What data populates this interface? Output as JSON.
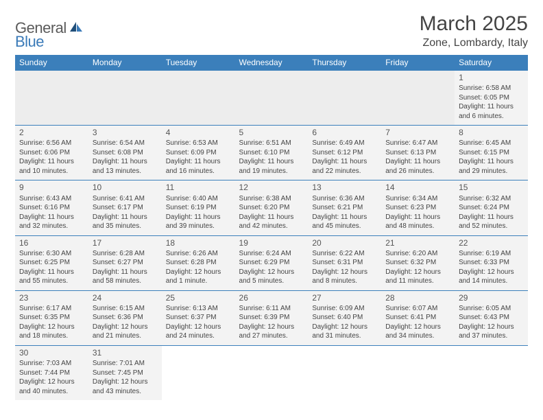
{
  "logo": {
    "text1": "General",
    "text2": "Blue",
    "color1": "#5a5a5a",
    "color2": "#3a7ab8"
  },
  "header": {
    "month_title": "March 2025",
    "location": "Zone, Lombardy, Italy"
  },
  "theme": {
    "header_bg": "#3b7fbb",
    "header_text": "#ffffff",
    "cell_bg": "#f3f3f3",
    "empty_bg": "#ededed",
    "border_color": "#3b7fbb",
    "text_color": "#333333"
  },
  "day_labels": [
    "Sunday",
    "Monday",
    "Tuesday",
    "Wednesday",
    "Thursday",
    "Friday",
    "Saturday"
  ],
  "first_day_index": 6,
  "days_in_month": 31,
  "days": {
    "1": {
      "sunrise": "6:58 AM",
      "sunset": "6:05 PM",
      "daylight": "11 hours and 6 minutes."
    },
    "2": {
      "sunrise": "6:56 AM",
      "sunset": "6:06 PM",
      "daylight": "11 hours and 10 minutes."
    },
    "3": {
      "sunrise": "6:54 AM",
      "sunset": "6:08 PM",
      "daylight": "11 hours and 13 minutes."
    },
    "4": {
      "sunrise": "6:53 AM",
      "sunset": "6:09 PM",
      "daylight": "11 hours and 16 minutes."
    },
    "5": {
      "sunrise": "6:51 AM",
      "sunset": "6:10 PM",
      "daylight": "11 hours and 19 minutes."
    },
    "6": {
      "sunrise": "6:49 AM",
      "sunset": "6:12 PM",
      "daylight": "11 hours and 22 minutes."
    },
    "7": {
      "sunrise": "6:47 AM",
      "sunset": "6:13 PM",
      "daylight": "11 hours and 26 minutes."
    },
    "8": {
      "sunrise": "6:45 AM",
      "sunset": "6:15 PM",
      "daylight": "11 hours and 29 minutes."
    },
    "9": {
      "sunrise": "6:43 AM",
      "sunset": "6:16 PM",
      "daylight": "11 hours and 32 minutes."
    },
    "10": {
      "sunrise": "6:41 AM",
      "sunset": "6:17 PM",
      "daylight": "11 hours and 35 minutes."
    },
    "11": {
      "sunrise": "6:40 AM",
      "sunset": "6:19 PM",
      "daylight": "11 hours and 39 minutes."
    },
    "12": {
      "sunrise": "6:38 AM",
      "sunset": "6:20 PM",
      "daylight": "11 hours and 42 minutes."
    },
    "13": {
      "sunrise": "6:36 AM",
      "sunset": "6:21 PM",
      "daylight": "11 hours and 45 minutes."
    },
    "14": {
      "sunrise": "6:34 AM",
      "sunset": "6:23 PM",
      "daylight": "11 hours and 48 minutes."
    },
    "15": {
      "sunrise": "6:32 AM",
      "sunset": "6:24 PM",
      "daylight": "11 hours and 52 minutes."
    },
    "16": {
      "sunrise": "6:30 AM",
      "sunset": "6:25 PM",
      "daylight": "11 hours and 55 minutes."
    },
    "17": {
      "sunrise": "6:28 AM",
      "sunset": "6:27 PM",
      "daylight": "11 hours and 58 minutes."
    },
    "18": {
      "sunrise": "6:26 AM",
      "sunset": "6:28 PM",
      "daylight": "12 hours and 1 minute."
    },
    "19": {
      "sunrise": "6:24 AM",
      "sunset": "6:29 PM",
      "daylight": "12 hours and 5 minutes."
    },
    "20": {
      "sunrise": "6:22 AM",
      "sunset": "6:31 PM",
      "daylight": "12 hours and 8 minutes."
    },
    "21": {
      "sunrise": "6:20 AM",
      "sunset": "6:32 PM",
      "daylight": "12 hours and 11 minutes."
    },
    "22": {
      "sunrise": "6:19 AM",
      "sunset": "6:33 PM",
      "daylight": "12 hours and 14 minutes."
    },
    "23": {
      "sunrise": "6:17 AM",
      "sunset": "6:35 PM",
      "daylight": "12 hours and 18 minutes."
    },
    "24": {
      "sunrise": "6:15 AM",
      "sunset": "6:36 PM",
      "daylight": "12 hours and 21 minutes."
    },
    "25": {
      "sunrise": "6:13 AM",
      "sunset": "6:37 PM",
      "daylight": "12 hours and 24 minutes."
    },
    "26": {
      "sunrise": "6:11 AM",
      "sunset": "6:39 PM",
      "daylight": "12 hours and 27 minutes."
    },
    "27": {
      "sunrise": "6:09 AM",
      "sunset": "6:40 PM",
      "daylight": "12 hours and 31 minutes."
    },
    "28": {
      "sunrise": "6:07 AM",
      "sunset": "6:41 PM",
      "daylight": "12 hours and 34 minutes."
    },
    "29": {
      "sunrise": "6:05 AM",
      "sunset": "6:43 PM",
      "daylight": "12 hours and 37 minutes."
    },
    "30": {
      "sunrise": "7:03 AM",
      "sunset": "7:44 PM",
      "daylight": "12 hours and 40 minutes."
    },
    "31": {
      "sunrise": "7:01 AM",
      "sunset": "7:45 PM",
      "daylight": "12 hours and 43 minutes."
    }
  },
  "labels": {
    "sunrise_prefix": "Sunrise: ",
    "sunset_prefix": "Sunset: ",
    "daylight_prefix": "Daylight: "
  }
}
